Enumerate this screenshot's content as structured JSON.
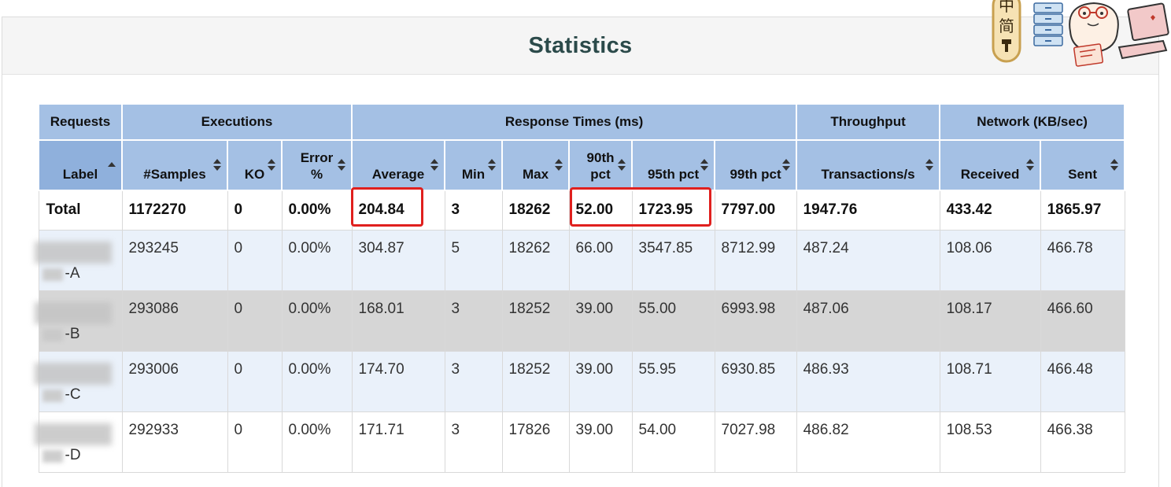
{
  "title": "Statistics",
  "groups": {
    "requests": "Requests",
    "executions": "Executions",
    "response_times": "Response Times (ms)",
    "throughput": "Throughput",
    "network": "Network (KB/sec)"
  },
  "columns": {
    "label": "Label",
    "samples": "#Samples",
    "ko": "KO",
    "error_pct": "Error %",
    "average": "Average",
    "min": "Min",
    "max": "Max",
    "p90": "90th pct",
    "p95": "95th pct",
    "p99": "99th pct",
    "transactions": "Transactions/s",
    "received": "Received",
    "sent": "Sent"
  },
  "total": {
    "label": "Total",
    "samples": "1172270",
    "ko": "0",
    "error_pct": "0.00%",
    "average": "204.84",
    "min": "3",
    "max": "18262",
    "p90": "52.00",
    "p95": "1723.95",
    "p99": "7797.00",
    "transactions": "1947.76",
    "received": "433.42",
    "sent": "1865.97"
  },
  "rows": [
    {
      "label": "-A",
      "samples": "293245",
      "ko": "0",
      "error_pct": "0.00%",
      "average": "304.87",
      "min": "5",
      "max": "18262",
      "p90": "66.00",
      "p95": "3547.85",
      "p99": "8712.99",
      "transactions": "487.24",
      "received": "108.06",
      "sent": "466.78"
    },
    {
      "label": "-B",
      "samples": "293086",
      "ko": "0",
      "error_pct": "0.00%",
      "average": "168.01",
      "min": "3",
      "max": "18252",
      "p90": "39.00",
      "p95": "55.00",
      "p99": "6993.98",
      "transactions": "487.06",
      "received": "108.17",
      "sent": "466.60"
    },
    {
      "label": "-C",
      "samples": "293006",
      "ko": "0",
      "error_pct": "0.00%",
      "average": "174.70",
      "min": "3",
      "max": "18252",
      "p90": "39.00",
      "p95": "55.95",
      "p99": "6930.85",
      "transactions": "486.93",
      "received": "108.71",
      "sent": "466.48"
    },
    {
      "label": "-D",
      "samples": "292933",
      "ko": "0",
      "error_pct": "0.00%",
      "average": "171.71",
      "min": "3",
      "max": "17826",
      "p90": "39.00",
      "p95": "54.00",
      "p99": "7027.98",
      "transactions": "486.82",
      "received": "108.53",
      "sent": "466.38"
    }
  ],
  "mascot": {
    "badge_chars": [
      "中",
      "简"
    ]
  },
  "colors": {
    "header_bg": "#a4c0e4",
    "highlight": "#e0201e",
    "title": "#2b4a4a"
  }
}
